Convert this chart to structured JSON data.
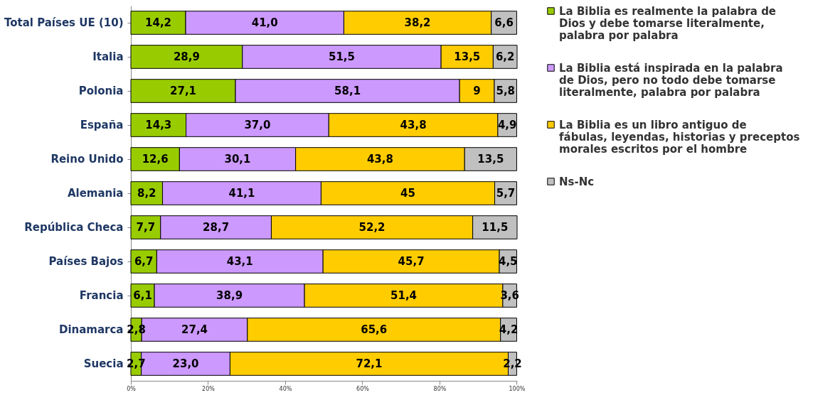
{
  "chart_data": {
    "type": "bar",
    "orientation": "horizontal",
    "stacked": true,
    "categories": [
      "Total Países UE (10)",
      "Italia",
      "Polonia",
      "España",
      "Reino Unido",
      "Alemania",
      "República Checa",
      "Países Bajos",
      "Francia",
      "Dinamarca",
      "Suecia"
    ],
    "series": [
      {
        "name": "La Biblia es realmente la palabra de Dios y debe tomarse literalmente, palabra por palabra",
        "color": "#99cc00",
        "values": [
          14.2,
          28.9,
          27.1,
          14.3,
          12.6,
          8.2,
          7.7,
          6.7,
          6.1,
          2.8,
          2.7
        ],
        "value_labels": [
          "14,2",
          "28,9",
          "27,1",
          "14,3",
          "12,6",
          "8,2",
          "7,7",
          "6,7",
          "6,1",
          "2,8",
          "2,7"
        ]
      },
      {
        "name": "La Biblia está inspirada en la palabra de Dios, pero no todo debe tomarse literalmente, palabra por palabra",
        "color": "#cc99ff",
        "values": [
          41.0,
          51.5,
          58.1,
          37.0,
          30.1,
          41.1,
          28.7,
          43.1,
          38.9,
          27.4,
          23.0
        ],
        "value_labels": [
          "41,0",
          "51,5",
          "58,1",
          "37,0",
          "30,1",
          "41,1",
          "28,7",
          "43,1",
          "38,9",
          "27,4",
          "23,0"
        ]
      },
      {
        "name": "La Biblia es un libro antiguo de fábulas, leyendas, historias y preceptos morales escritos por el hombre",
        "color": "#ffcc00",
        "values": [
          38.2,
          13.5,
          9,
          43.8,
          43.8,
          45,
          52.2,
          45.7,
          51.4,
          65.6,
          72.1
        ],
        "value_labels": [
          "38,2",
          "13,5",
          "9",
          "43,8",
          "43,8",
          "45",
          "52,2",
          "45,7",
          "51,4",
          "65,6",
          "72,1"
        ]
      },
      {
        "name": "Ns-Nc",
        "color": "#c0c0c0",
        "values": [
          6.6,
          6.2,
          5.8,
          4.9,
          13.5,
          5.7,
          11.5,
          4.5,
          3.6,
          4.2,
          2.2
        ],
        "value_labels": [
          "6,6",
          "6,2",
          "5,8",
          "4,9",
          "13,5",
          "5,7",
          "11,5",
          "4,5",
          "3,6",
          "4,2",
          "2,2"
        ]
      }
    ],
    "xlim": [
      0,
      100.1
    ],
    "xticks": [
      {
        "value": 0,
        "label": "0%"
      },
      {
        "value": 20,
        "label": "20%"
      },
      {
        "value": 40,
        "label": "40%"
      },
      {
        "value": 60,
        "label": "60%"
      },
      {
        "value": 80,
        "label": "80%"
      },
      {
        "value": 100,
        "label": "100%"
      }
    ],
    "grid": false,
    "legend": "right"
  }
}
